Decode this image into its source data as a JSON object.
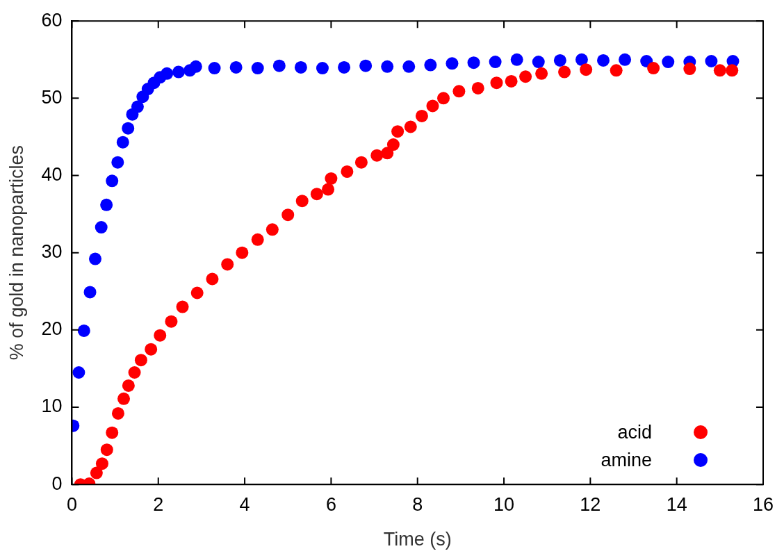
{
  "chart_data": {
    "type": "scatter",
    "xlabel": "Time (s)",
    "ylabel": "% of gold in nanoparticles",
    "xlim": [
      0,
      16
    ],
    "ylim": [
      0,
      60
    ],
    "xticks": [
      0,
      2,
      4,
      6,
      8,
      10,
      12,
      14,
      16
    ],
    "yticks": [
      0,
      10,
      20,
      30,
      40,
      50,
      60
    ],
    "grid": false,
    "legend": "bottom right",
    "marker": "circle",
    "series": [
      {
        "name": "acid",
        "color": "#ff0000",
        "x": [
          0.2,
          0.4,
          0.57,
          0.7,
          0.81,
          0.93,
          1.07,
          1.2,
          1.31,
          1.45,
          1.6,
          1.83,
          2.04,
          2.3,
          2.56,
          2.9,
          3.25,
          3.6,
          3.94,
          4.3,
          4.64,
          5,
          5.33,
          5.67,
          5.93,
          6,
          6.37,
          6.7,
          7.06,
          7.3,
          7.44,
          7.54,
          7.84,
          8.1,
          8.35,
          8.6,
          8.96,
          9.4,
          9.83,
          10.17,
          10.5,
          10.87,
          11.4,
          11.9,
          12.6,
          13.46,
          14.3,
          15,
          15.28
        ],
        "values": [
          0,
          0.1,
          1.5,
          2.7,
          4.5,
          6.7,
          9.2,
          11.1,
          12.8,
          14.5,
          16.1,
          17.5,
          19.3,
          21.1,
          23,
          24.8,
          26.6,
          28.5,
          30,
          31.7,
          33,
          34.9,
          36.7,
          37.6,
          38.2,
          39.6,
          40.5,
          41.7,
          42.6,
          42.9,
          44,
          45.7,
          46.3,
          47.7,
          49,
          50,
          50.9,
          51.3,
          52,
          52.2,
          52.8,
          53.2,
          53.4,
          53.7,
          53.6,
          53.9,
          53.8,
          53.6,
          53.6
        ]
      },
      {
        "name": "amine",
        "color": "#0000ff",
        "x": [
          0.03,
          0.16,
          0.28,
          0.42,
          0.54,
          0.68,
          0.8,
          0.93,
          1.06,
          1.18,
          1.3,
          1.4,
          1.52,
          1.64,
          1.76,
          1.9,
          2.04,
          2.2,
          2.47,
          2.73,
          2.87,
          3.3,
          3.8,
          4.3,
          4.8,
          5.3,
          5.8,
          6.3,
          6.8,
          7.3,
          7.8,
          8.3,
          8.8,
          9.3,
          9.8,
          10.3,
          10.8,
          11.3,
          11.8,
          12.3,
          12.8,
          13.3,
          13.8,
          14.3,
          14.8,
          15.3
        ],
        "values": [
          7.6,
          14.5,
          19.9,
          24.9,
          29.2,
          33.3,
          36.2,
          39.3,
          41.7,
          44.3,
          46.1,
          47.9,
          48.9,
          50.2,
          51.2,
          52,
          52.7,
          53.2,
          53.4,
          53.6,
          54.1,
          53.9,
          54,
          53.9,
          54.2,
          54,
          53.9,
          54,
          54.2,
          54.1,
          54.1,
          54.3,
          54.5,
          54.6,
          54.7,
          55,
          54.7,
          54.9,
          55,
          54.9,
          55,
          54.8,
          54.7,
          54.7,
          54.8,
          54.8
        ]
      }
    ]
  }
}
